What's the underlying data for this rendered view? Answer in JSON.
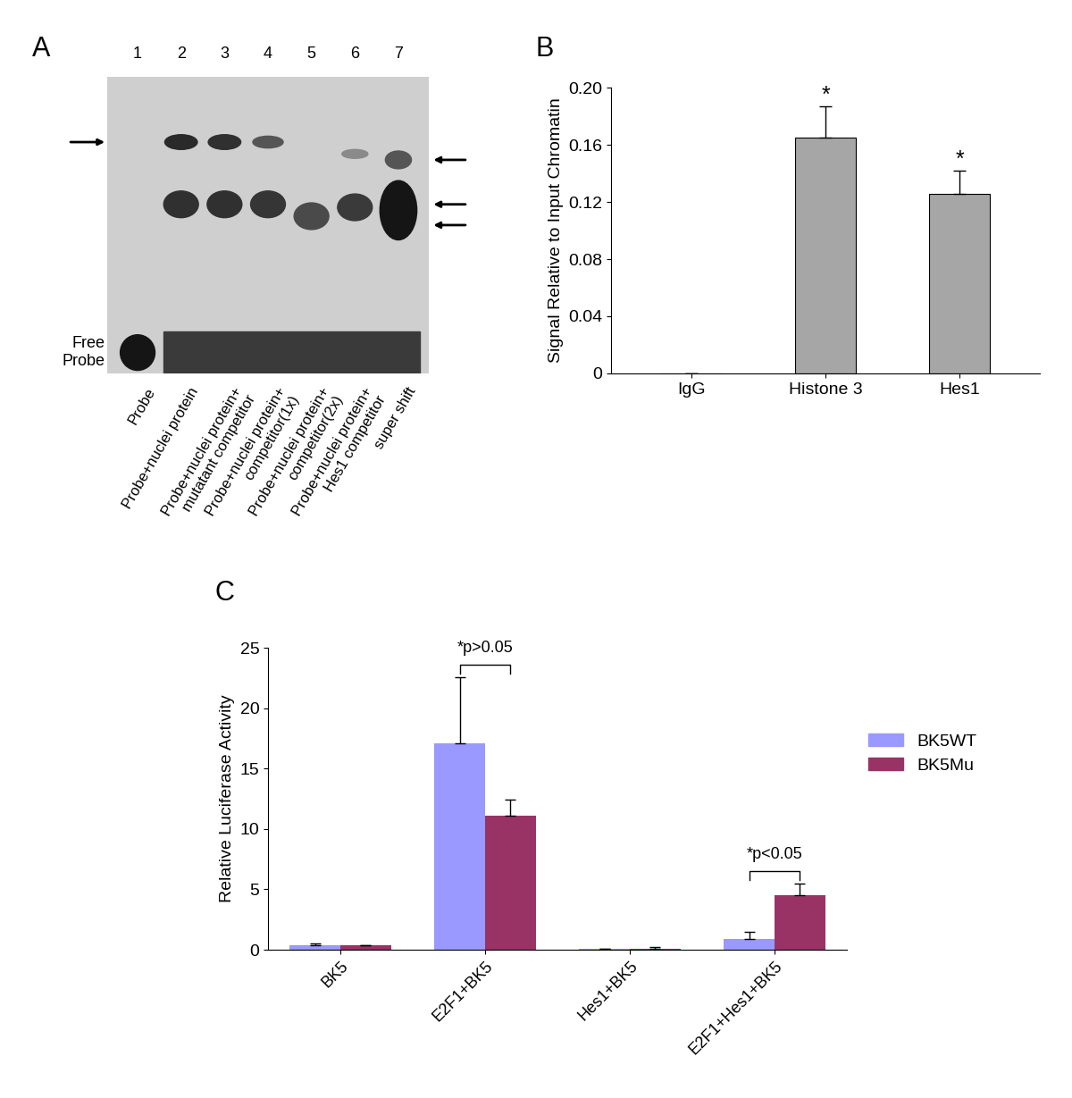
{
  "chart_data": [
    {
      "type": "gel",
      "title": "A",
      "lane_numbers": [
        1,
        2,
        3,
        4,
        5,
        6,
        7
      ],
      "lane_labels": [
        "Probe",
        "Probe+nuclei protein",
        "Probe+nuclei protein+\nmutatant competitor",
        "Probe+nuclei protein+\ncompetitor(1x)",
        "Probe+nuclei protein+\ncompetitor(2x)",
        "Probe+nuclei protein+\nHes1 competitor",
        "super shift"
      ],
      "free_probe_label": "Free\nProbe"
    },
    {
      "type": "bar",
      "title": "B",
      "categories": [
        "IgG",
        "Histone 3",
        "Hes1"
      ],
      "values": [
        0.0,
        0.165,
        0.126
      ],
      "errors": [
        0.0,
        0.022,
        0.016
      ],
      "color": "#a6a6a6",
      "y_label": "Signal Relative to Input Chromatin",
      "ylim": [
        0,
        0.2
      ],
      "yticks": [
        0,
        0.04,
        0.08,
        0.12,
        0.16,
        {
          "value": 0.2,
          "label": "0.20"
        }
      ],
      "annotations": [
        {
          "category": "Histone 3",
          "text": "*"
        },
        {
          "category": "Hes1",
          "text": "*"
        }
      ]
    },
    {
      "type": "bar",
      "title": "C",
      "categories": [
        "BK5",
        "E2F1+BK5",
        "Hes1+BK5",
        "E2F1+Hes1+BK5"
      ],
      "series": [
        {
          "name": "BK5WT",
          "color": "#9999ff",
          "values": [
            0.4,
            17.1,
            0.05,
            0.9
          ],
          "errors": [
            0.15,
            5.5,
            0.05,
            0.55
          ]
        },
        {
          "name": "BK5Mu",
          "color": "#993366",
          "values": [
            0.35,
            11.1,
            0.1,
            4.5
          ],
          "errors": [
            0.05,
            1.3,
            0.1,
            1.0
          ]
        }
      ],
      "y_label": "Relative Luciferase Activity",
      "ylim": [
        0,
        25
      ],
      "yticks": [
        0,
        5,
        10,
        15,
        20,
        25
      ],
      "legend": "right",
      "annotations": [
        {
          "category": "E2F1+BK5",
          "text": "*p>0.05"
        },
        {
          "category": "E2F1+Hes1+BK5",
          "text": "*p<0.05"
        }
      ]
    }
  ]
}
